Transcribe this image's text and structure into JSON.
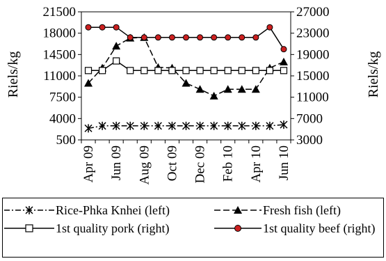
{
  "chart_data": {
    "type": "line",
    "categories": [
      "Apr 09",
      "May 09",
      "Jun 09",
      "Jul 09",
      "Aug 09",
      "Sep 09",
      "Oct 09",
      "Nov 09",
      "Dec 09",
      "Jan 10",
      "Feb 10",
      "Mar 10",
      "Apr 10",
      "May 10",
      "Jun 10"
    ],
    "xtick_labels": [
      "Apr 09",
      "Jun 09",
      "Aug 09",
      "Oct 09",
      "Dec 09",
      "Feb 10",
      "Apr 10",
      "Jun 10"
    ],
    "ylabel_left": "Riels/kg",
    "ylabel_right": "Riels/kg",
    "ylim_left": [
      500,
      21500
    ],
    "yticks_left": [
      "21500",
      "18000",
      "14500",
      "11000",
      "7500",
      "4000",
      "500"
    ],
    "ylim_right": [
      3000,
      27000
    ],
    "yticks_right": [
      "27000",
      "23000",
      "19000",
      "15000",
      "11000",
      "7000",
      "3000"
    ],
    "grid": false,
    "legend_position": "bottom",
    "series": [
      {
        "name": "Rice-Phka Knhei (left)",
        "axis": "left",
        "marker": "star",
        "line": "dash-dot",
        "color": "#000000",
        "values": [
          2400,
          2800,
          2800,
          2800,
          2800,
          2800,
          2800,
          2800,
          2800,
          2800,
          2800,
          2800,
          2800,
          2800,
          3000
        ]
      },
      {
        "name": "Fresh fish (left)",
        "axis": "left",
        "marker": "triangle",
        "line": "dashed",
        "color": "#000000",
        "values": [
          9800,
          12300,
          15900,
          17200,
          17300,
          12400,
          12300,
          9800,
          8800,
          7700,
          8800,
          8800,
          8800,
          12300,
          13300
        ]
      },
      {
        "name": "1st quality pork (right)",
        "axis": "right",
        "marker": "square",
        "line": "solid",
        "color": "#000000",
        "values": [
          16000,
          16000,
          17800,
          16000,
          16000,
          16000,
          16000,
          16000,
          16000,
          16000,
          16000,
          16000,
          16000,
          16000,
          16000
        ]
      },
      {
        "name": "1st quality beef (right)",
        "axis": "right",
        "marker": "circle",
        "line": "solid",
        "color": "#000000",
        "marker_fill": "#cc2020",
        "values": [
          24100,
          24100,
          24100,
          22200,
          22200,
          22200,
          22200,
          22200,
          22200,
          22200,
          22200,
          22200,
          22200,
          24100,
          20000
        ]
      }
    ]
  }
}
